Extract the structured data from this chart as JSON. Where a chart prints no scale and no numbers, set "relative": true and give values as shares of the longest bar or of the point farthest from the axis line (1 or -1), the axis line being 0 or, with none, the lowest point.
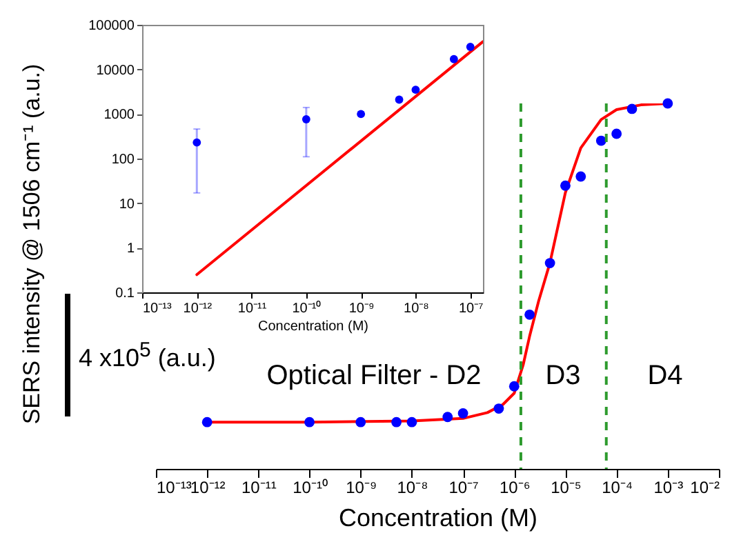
{
  "chart_data": [
    {
      "type": "scatter",
      "xlabel": "Concentration (M)",
      "ylabel": "SERS intensity @ 1506 cm⁻¹ (a.u.)",
      "log": "x",
      "relative": true,
      "xlim": [
        1e-13,
        0.01
      ],
      "xticks": [
        {
          "value": 1e-13,
          "label": "10⁻¹³"
        },
        {
          "value": 1e-12,
          "label": "10⁻¹²"
        },
        {
          "value": 1e-11,
          "label": "10⁻¹¹"
        },
        {
          "value": 1e-10,
          "label": "10⁻¹⁰"
        },
        {
          "value": 1e-09,
          "label": "10⁻⁹"
        },
        {
          "value": 1e-08,
          "label": "10⁻⁸"
        },
        {
          "value": 1e-07,
          "label": "10⁻⁷"
        },
        {
          "value": 1e-06,
          "label": "10⁻⁶"
        },
        {
          "value": 1e-05,
          "label": "10⁻⁵"
        },
        {
          "value": 0.0001,
          "label": "10⁻⁴"
        },
        {
          "value": 0.001,
          "label": "10⁻³"
        },
        {
          "value": 0.01,
          "label": "10⁻²"
        }
      ],
      "series": [
        {
          "type": "line",
          "color": "#ff0000",
          "x": [
            1e-12,
            1e-10,
            1e-08,
            1e-07,
            3e-07,
            6e-07,
            1e-06,
            1.5e-06,
            2e-06,
            3e-06,
            5e-06,
            1e-05,
            2e-05,
            5e-05,
            0.0001,
            0.0003,
            0.001
          ],
          "values": [
            0.128,
            0.128,
            0.131,
            0.138,
            0.154,
            0.176,
            0.207,
            0.285,
            0.363,
            0.459,
            0.564,
            0.756,
            0.878,
            0.956,
            0.983,
            0.996,
            1
          ]
        },
        {
          "type": "scatter",
          "color": "#0000ff",
          "marker": "circle",
          "x": [
            1e-12,
            1e-10,
            1e-09,
            5e-09,
            1e-08,
            5e-08,
            1e-07,
            5e-07,
            1e-06,
            2e-06,
            5e-06,
            1e-05,
            2e-05,
            5e-05,
            0.0001,
            0.0002,
            0.001
          ],
          "values": [
            0.128,
            0.128,
            0.128,
            0.128,
            0.128,
            0.142,
            0.152,
            0.165,
            0.226,
            0.422,
            0.563,
            0.775,
            0.8,
            0.898,
            0.917,
            0.985,
            1
          ]
        }
      ],
      "ref_lines": [
        {
          "axis": "x",
          "value": 1.35e-06,
          "color": "#2e9b2e",
          "line_style": "dashed"
        },
        {
          "axis": "x",
          "value": 6.3e-05,
          "color": "#2e9b2e",
          "line_style": "dashed"
        }
      ],
      "annotations": [
        "Optical Filter - D2",
        "D3",
        "D4",
        "4 x10$^{5}$ (a.u.)"
      ]
    },
    {
      "type": "scatter",
      "xlabel": "Concentration (M)",
      "log": "xy",
      "xlim": [
        1e-13,
        1.7e-07
      ],
      "xticks": [
        {
          "value": 1e-13,
          "label": "10⁻¹³"
        },
        {
          "value": 1e-12,
          "label": "10⁻¹²"
        },
        {
          "value": 1e-11,
          "label": "10⁻¹¹"
        },
        {
          "value": 1e-10,
          "label": "10⁻¹⁰"
        },
        {
          "value": 1e-09,
          "label": "10⁻⁹"
        },
        {
          "value": 1e-08,
          "label": "10⁻⁸"
        },
        {
          "value": 1e-07,
          "label": "10⁻⁷"
        }
      ],
      "ylim": [
        0.1,
        100000
      ],
      "yticks": [
        0.1,
        1,
        10,
        100,
        1000,
        10000,
        100000
      ],
      "series": [
        {
          "type": "line",
          "color": "#ff0000",
          "x": [
            1e-12,
            1.7e-07
          ],
          "values": [
            0.25,
            42000
          ]
        },
        {
          "type": "scatter",
          "color": "#0000ff",
          "marker": "circle",
          "x": [
            1e-12,
            1e-10,
            1e-09,
            5e-09,
            1e-08,
            5e-08,
            1e-07
          ],
          "values": [
            230,
            760,
            1000,
            2100,
            3500,
            17000,
            32000
          ],
          "errors": [
            [
              17,
              460
            ],
            [
              110,
              1400
            ],
            null,
            null,
            null,
            null,
            null
          ]
        }
      ]
    }
  ]
}
